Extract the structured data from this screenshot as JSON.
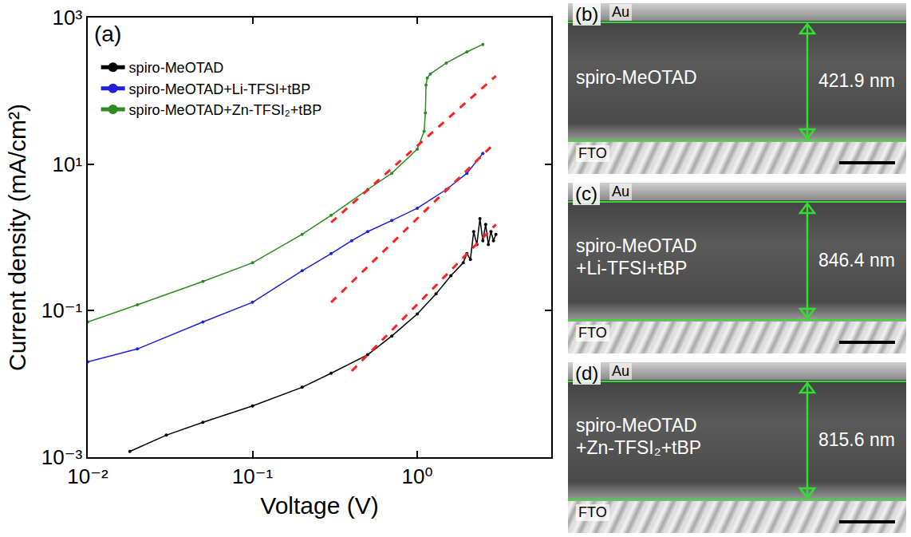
{
  "chart_data": {
    "type": "line",
    "panel_label": "(a)",
    "x_label": "Voltage (V)",
    "y_label": "Current density (mA/cm²)",
    "log": true,
    "grid": false,
    "legend": "top-left",
    "marker": "circle",
    "xlim": [
      0.01,
      6.5
    ],
    "ylim": [
      0.001,
      1000
    ],
    "xticks": [
      {
        "value": 0.01,
        "label": "10⁻²"
      },
      {
        "value": 0.1,
        "label": "10⁻¹"
      },
      {
        "value": 1,
        "label": "10⁰"
      }
    ],
    "yticks": [
      {
        "value": 0.001,
        "label": "10⁻³"
      },
      {
        "value": 0.1,
        "label": "10⁻¹"
      },
      {
        "value": 10,
        "label": "10¹"
      },
      {
        "value": 1000,
        "label": "10³"
      }
    ],
    "series": [
      {
        "name": "spiro-MeOTAD",
        "color": "#000000",
        "x": [
          0.018,
          0.03,
          0.05,
          0.1,
          0.2,
          0.3,
          0.5,
          0.7,
          1.0,
          1.3,
          1.6,
          1.9,
          2.0,
          2.1,
          2.2,
          2.3,
          2.4,
          2.5,
          2.6,
          2.7,
          2.8,
          2.9,
          3.0
        ],
        "values": [
          0.0012,
          0.002,
          0.003,
          0.005,
          0.009,
          0.014,
          0.025,
          0.045,
          0.09,
          0.17,
          0.3,
          0.45,
          0.6,
          0.5,
          1.2,
          0.8,
          1.8,
          0.9,
          1.5,
          0.8,
          1.2,
          0.9,
          1.1
        ]
      },
      {
        "name": "spiro-MeOTAD+Li-TFSI+tBP",
        "color": "#1f1fdc",
        "x": [
          0.01,
          0.02,
          0.05,
          0.1,
          0.2,
          0.3,
          0.4,
          0.5,
          0.7,
          1.0,
          1.5,
          2.0,
          2.5
        ],
        "values": [
          0.02,
          0.03,
          0.07,
          0.13,
          0.35,
          0.6,
          0.9,
          1.2,
          1.7,
          2.5,
          4.5,
          7.5,
          14
        ]
      },
      {
        "name": "spiro-MeOTAD+Zn-TFSI₂+tBP",
        "color": "#2e8b22",
        "x": [
          0.01,
          0.02,
          0.05,
          0.1,
          0.2,
          0.3,
          0.5,
          0.7,
          1.0,
          1.1,
          1.12,
          1.13,
          1.15,
          1.2,
          1.5,
          2.0,
          2.5
        ],
        "values": [
          0.07,
          0.12,
          0.25,
          0.45,
          1.1,
          2.0,
          4.5,
          7.5,
          16,
          28,
          50,
          120,
          150,
          170,
          240,
          340,
          430
        ]
      }
    ],
    "fits": [
      {
        "color": "#ff2020",
        "line_style": "dashed",
        "x": [
          0.3,
          3.0
        ],
        "values": [
          1.6,
          160
        ]
      },
      {
        "color": "#ff2020",
        "line_style": "dashed",
        "x": [
          0.3,
          3.0
        ],
        "values": [
          0.13,
          20
        ]
      },
      {
        "color": "#ff2020",
        "line_style": "dashed",
        "x": [
          0.4,
          3.0
        ],
        "values": [
          0.015,
          1.5
        ]
      }
    ]
  },
  "panels": [
    {
      "label": "(b)",
      "top": "Au",
      "layer": "spiro-MeOTAD",
      "bottom": "FTO",
      "thickness": "421.9 nm"
    },
    {
      "label": "(c)",
      "top": "Au",
      "layer": "spiro-MeOTAD+Li-TFSI+tBP",
      "bottom": "FTO",
      "thickness": "846.4 nm"
    },
    {
      "label": "(d)",
      "top": "Au",
      "layer": "spiro-MeOTAD+Zn-TFSI₂+tBP",
      "bottom": "FTO",
      "thickness": "815.6 nm"
    }
  ]
}
